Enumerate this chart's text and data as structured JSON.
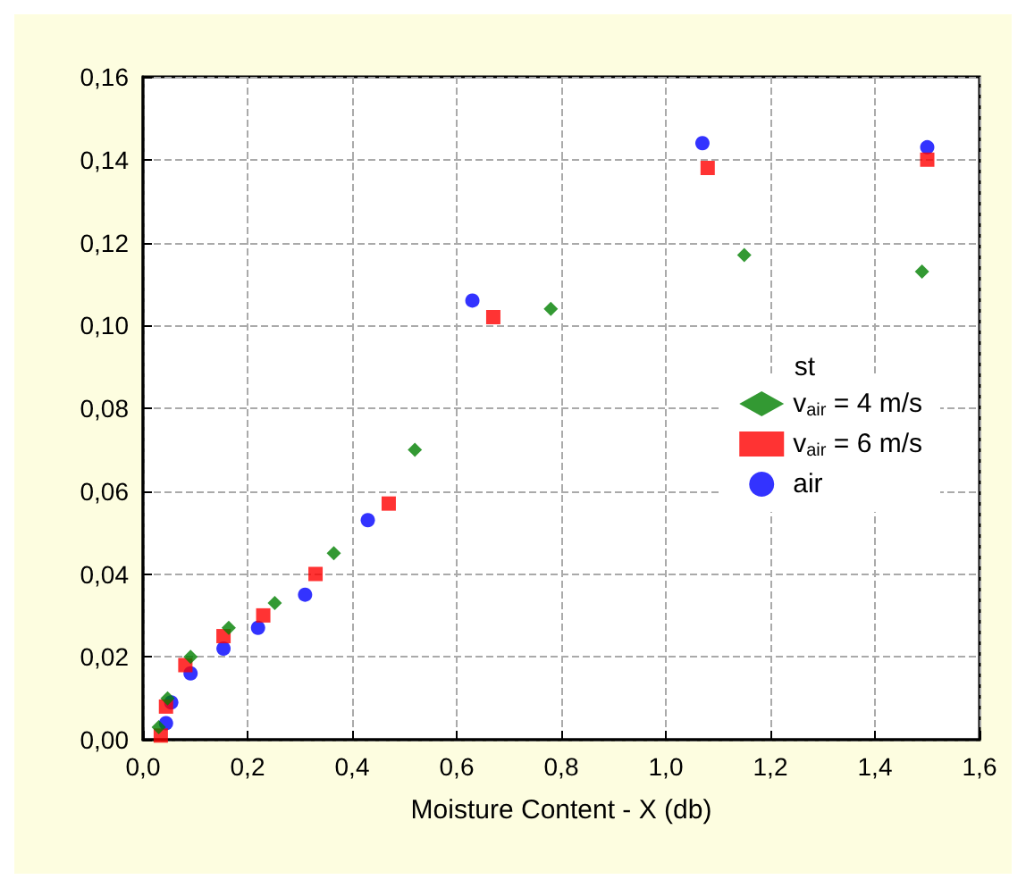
{
  "chart_data": {
    "type": "scatter",
    "xlabel": "Moisture Content - X (db)",
    "legend_title": "st",
    "xlim": [
      0,
      1.6
    ],
    "xticks": [
      {
        "value": 0,
        "label": "0,0"
      },
      {
        "value": 0.2,
        "label": "0,2"
      },
      {
        "value": 0.4,
        "label": "0,4"
      },
      {
        "value": 0.6,
        "label": "0,6"
      },
      {
        "value": 0.8,
        "label": "0,8"
      },
      {
        "value": 1.0,
        "label": "1,0"
      },
      {
        "value": 1.2,
        "label": "1,2"
      },
      {
        "value": 1.4,
        "label": "1,4"
      },
      {
        "value": 1.6,
        "label": "1,6"
      }
    ],
    "ylim": [
      0,
      0.16
    ],
    "yticks": [
      {
        "value": 0,
        "label": "0,00"
      },
      {
        "value": 0.02,
        "label": "0,02"
      },
      {
        "value": 0.04,
        "label": "0,04"
      },
      {
        "value": 0.06,
        "label": "0,06"
      },
      {
        "value": 0.08,
        "label": "0,08"
      },
      {
        "value": 0.1,
        "label": "0,10"
      },
      {
        "value": 0.12,
        "label": "0,12"
      },
      {
        "value": 0.14,
        "label": "0,14"
      },
      {
        "value": 0.16,
        "label": "0,16"
      }
    ],
    "grid": true,
    "legend": "right",
    "series": [
      {
        "name": "v$_{air}$ = 4 m/s",
        "color": "#008000",
        "marker": "diamond",
        "x": [
          0.03,
          0.047,
          0.091,
          0.164,
          0.252,
          0.365,
          0.52,
          0.78,
          1.15,
          1.49
        ],
        "values": [
          0.003,
          0.01,
          0.02,
          0.027,
          0.033,
          0.045,
          0.07,
          0.104,
          0.117,
          0.113
        ]
      },
      {
        "name": "v$_{air}$ = 6 m/s",
        "color": "#ff0000",
        "marker": "square",
        "x": [
          0.034,
          0.044,
          0.081,
          0.154,
          0.23,
          0.33,
          0.47,
          0.67,
          1.08,
          1.5
        ],
        "values": [
          0.001,
          0.008,
          0.018,
          0.025,
          0.03,
          0.04,
          0.057,
          0.102,
          0.138,
          0.14
        ]
      },
      {
        "name": "air",
        "color": "#0000ff",
        "marker": "circle",
        "x": [
          0.044,
          0.054,
          0.091,
          0.154,
          0.22,
          0.31,
          0.43,
          0.63,
          1.07,
          1.5
        ],
        "values": [
          0.004,
          0.009,
          0.016,
          0.022,
          0.027,
          0.035,
          0.053,
          0.106,
          0.144,
          0.143
        ]
      }
    ]
  }
}
